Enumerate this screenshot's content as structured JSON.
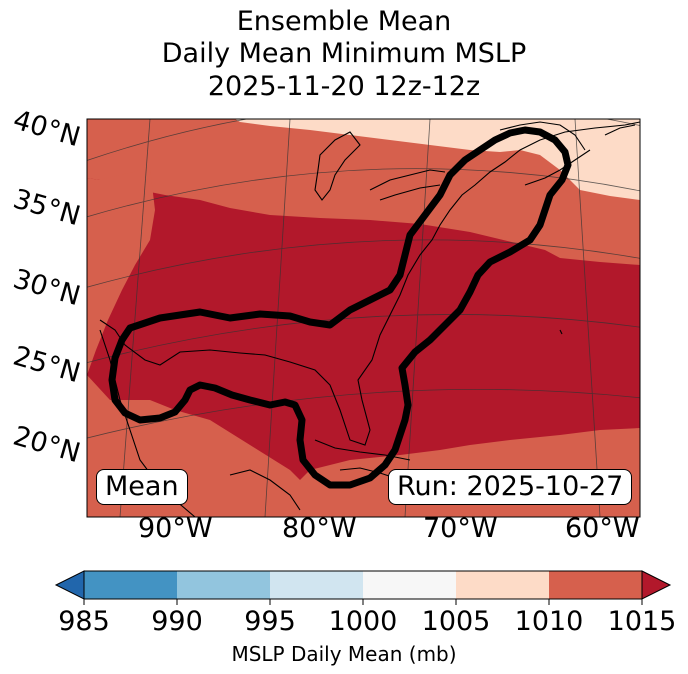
{
  "title": {
    "line1": "Ensemble Mean",
    "line2": "Daily Mean Minimum MSLP",
    "line3": "2025-11-20 12z-12z"
  },
  "map": {
    "lat_labels": [
      "40°N",
      "35°N",
      "30°N",
      "25°N",
      "20°N"
    ],
    "lon_labels": [
      "90°W",
      "80°W",
      "70°W",
      "60°W"
    ],
    "left_box": "Mean",
    "right_box": "Run: 2025-10-27",
    "fill_colors": {
      "1005-1010": "#fddbc7",
      "1010-1015": "#d6604d",
      "over-1015": "#b2182b"
    },
    "contour_color": "#000000"
  },
  "colorbar": {
    "label": "MSLP Daily Mean (mb)",
    "ticks": [
      "985",
      "990",
      "995",
      "1000",
      "1005",
      "1010",
      "1015"
    ],
    "colors": [
      "#4393c3",
      "#92c5de",
      "#d1e5f0",
      "#f7f7f7",
      "#fddbc7",
      "#d6604d"
    ],
    "under_color": "#2166ac",
    "over_color": "#b2182b"
  }
}
